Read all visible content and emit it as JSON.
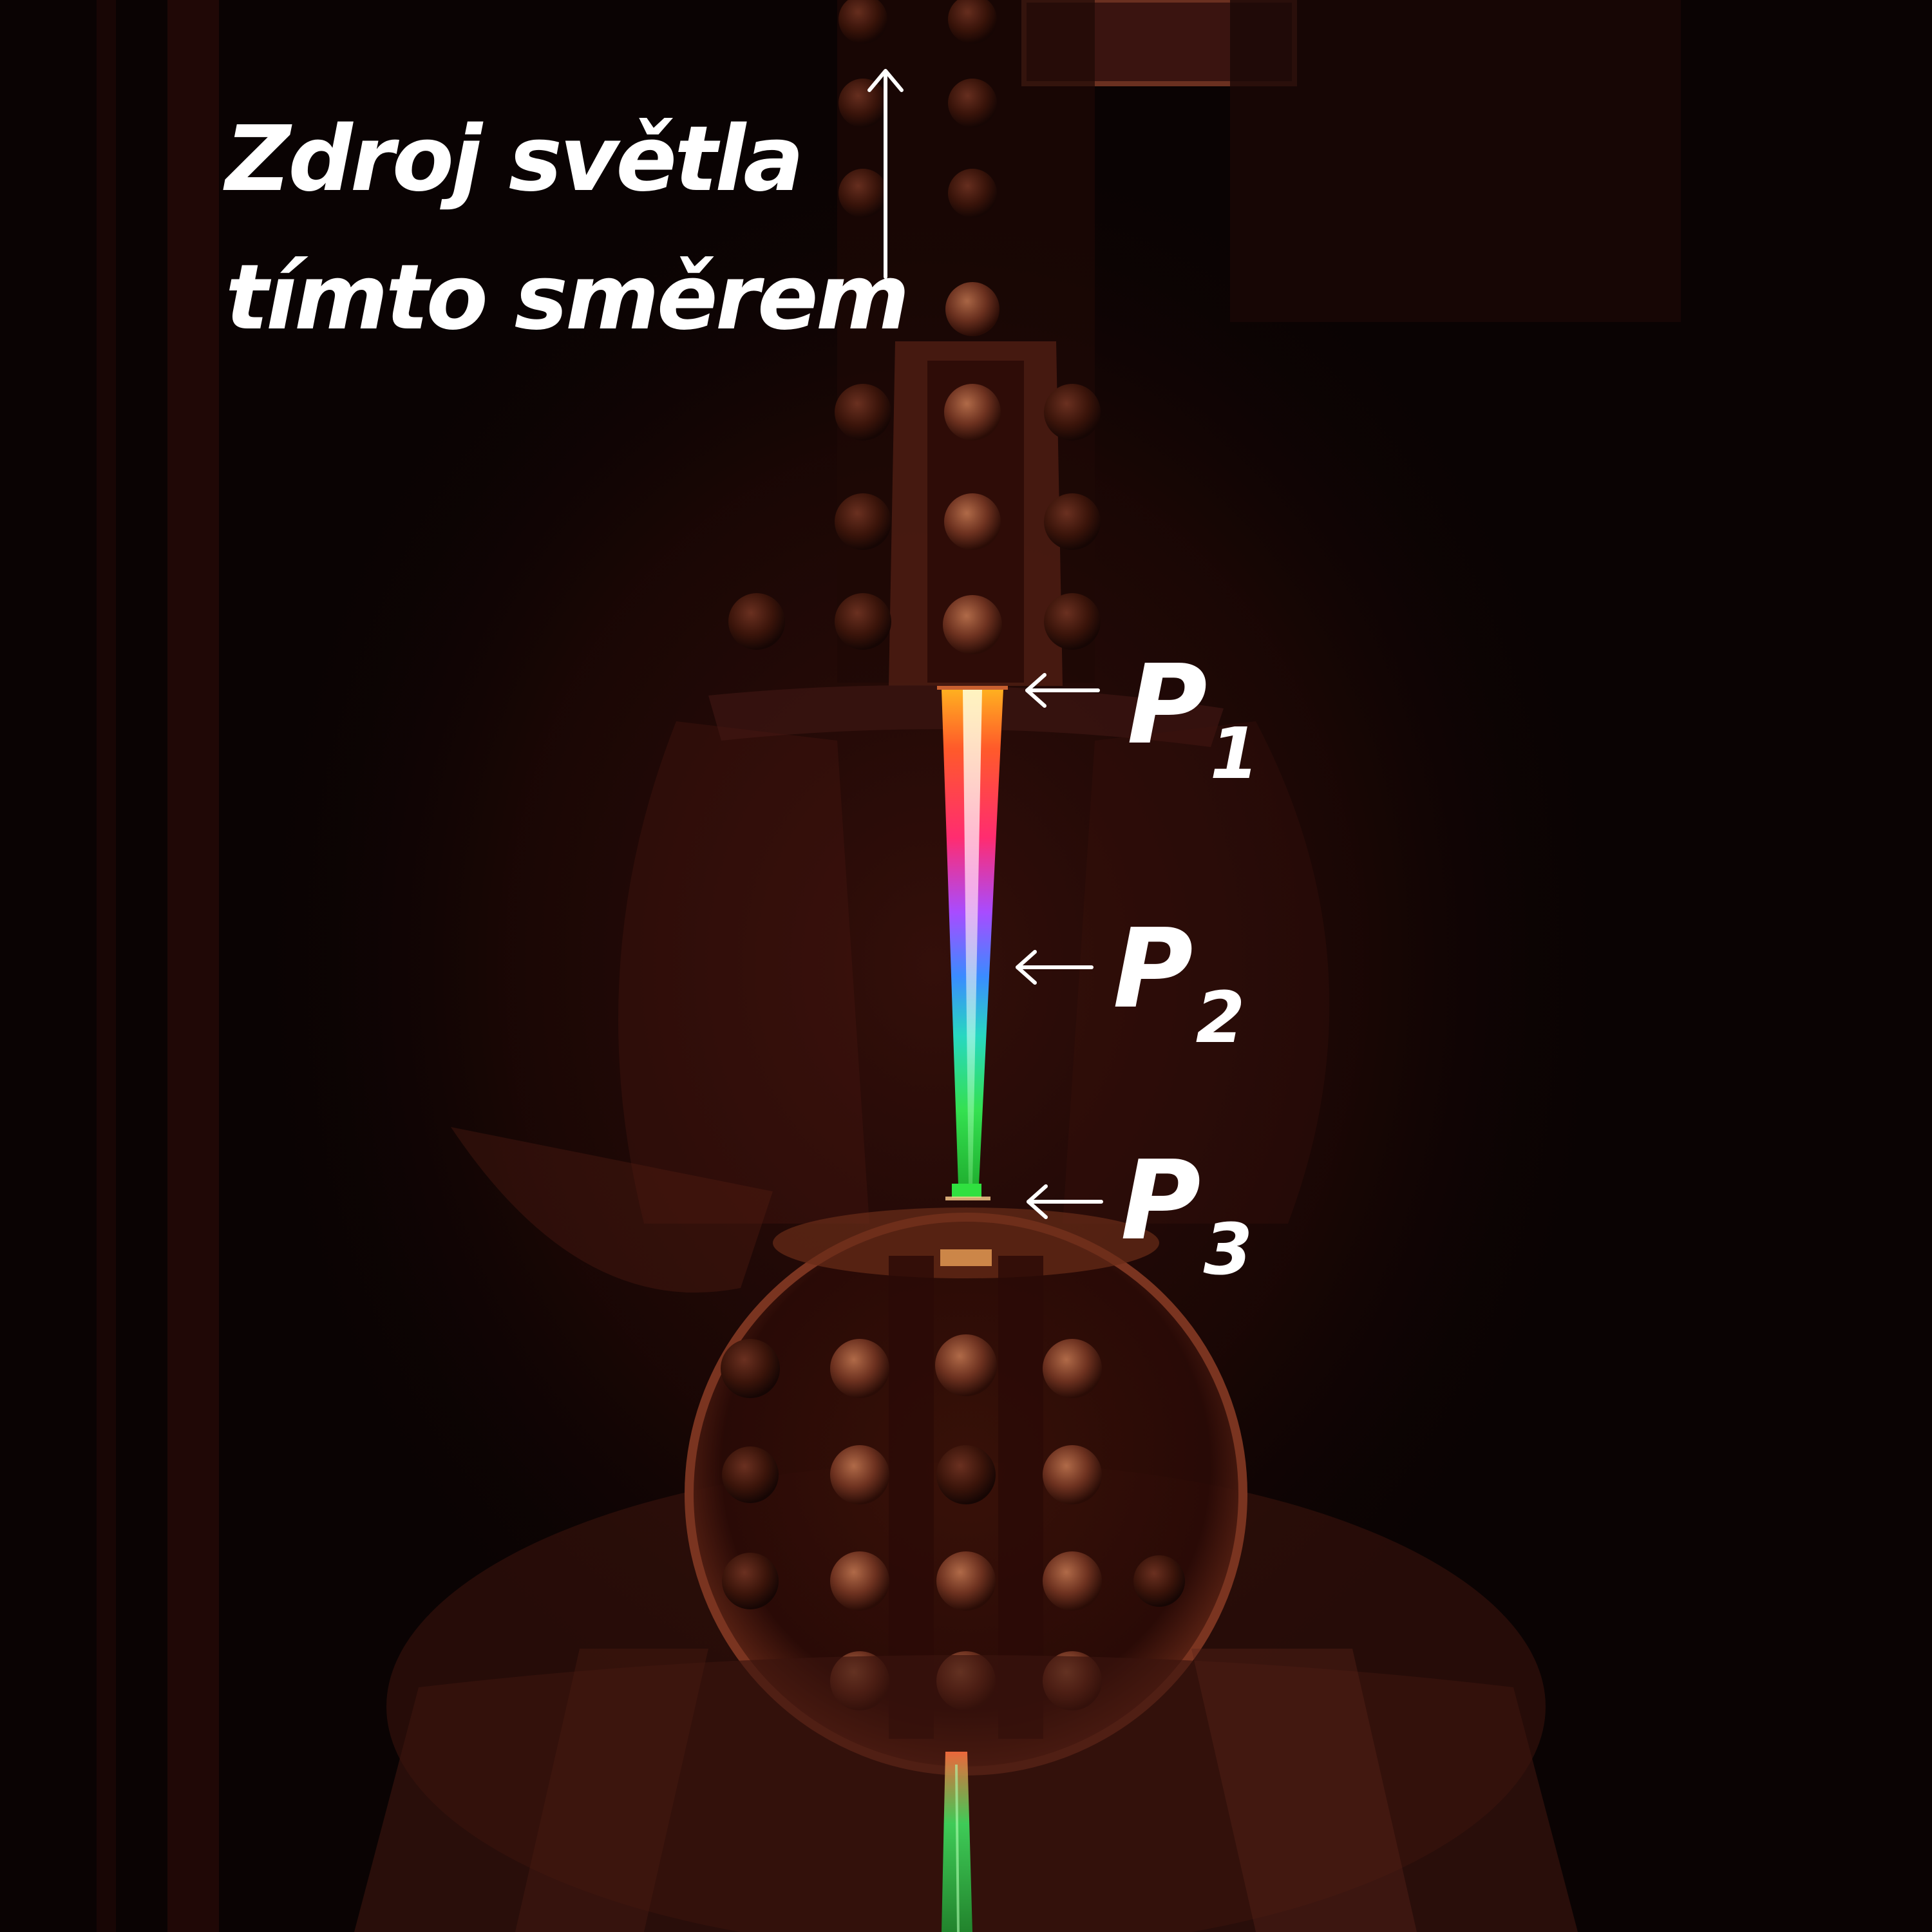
{
  "caption": {
    "line1": "Zdroj světla",
    "line2": "tímto směrem"
  },
  "markers": [
    {
      "letter": "P",
      "index": "1"
    },
    {
      "letter": "P",
      "index": "2"
    },
    {
      "letter": "P",
      "index": "3"
    }
  ],
  "colors": {
    "background": "#0a0303",
    "annotation": "#ffffff",
    "ambient_glow": "#8a2a1a",
    "spectrum": [
      "#ff6a1a",
      "#ff3c64",
      "#a050ff",
      "#3aa0ff",
      "#30e0a0",
      "#38e040"
    ]
  }
}
